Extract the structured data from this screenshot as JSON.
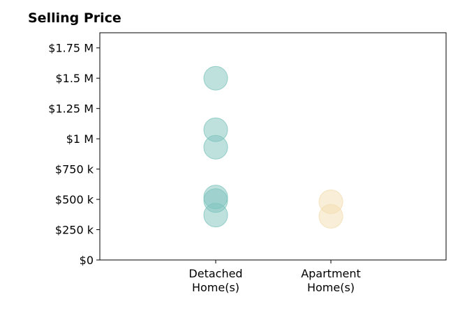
{
  "chart_data": {
    "type": "scatter",
    "title": "Selling Price",
    "xlabel": "",
    "ylabel": "",
    "categories": [
      "Detached\nHome(s)",
      "Apartment\nHome(s)"
    ],
    "y_ticks": [
      "$0",
      "$250 k",
      "$500 k",
      "$750 k",
      "$1 M",
      "$1.25 M",
      "$1.5 M",
      "$1.75 M"
    ],
    "ylim": [
      0,
      1875000
    ],
    "grid": false,
    "series": [
      {
        "category": 0,
        "color": "#7fc4bd",
        "values": [
          1500000,
          1075000,
          930000,
          520000,
          490000,
          370000
        ]
      },
      {
        "category": 1,
        "color": "#f3ddb0",
        "values": [
          480000,
          360000
        ]
      }
    ]
  }
}
